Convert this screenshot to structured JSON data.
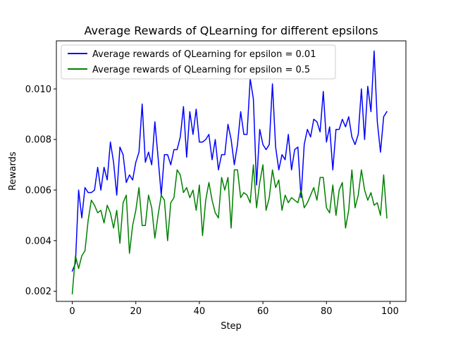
{
  "chart_data": {
    "type": "line",
    "title": "Average Rewards of QLearning for different epsilons",
    "xlabel": "Step",
    "ylabel": "Rewards",
    "xlim": [
      -5,
      105
    ],
    "ylim": [
      0.0016,
      0.0119
    ],
    "xticks": [
      0,
      20,
      40,
      60,
      80,
      100
    ],
    "xtick_labels": [
      "0",
      "20",
      "40",
      "60",
      "80",
      "100"
    ],
    "yticks": [
      0.002,
      0.004,
      0.006,
      0.008,
      0.01
    ],
    "ytick_labels": [
      "0.002",
      "0.004",
      "0.006",
      "0.008",
      "0.010"
    ],
    "grid": false,
    "legend_position": "top-left",
    "series": [
      {
        "name": "Average rewards of QLearning for epsilon = 0.01",
        "color": "#0000ff",
        "values": [
          0.0028,
          0.0031,
          0.006,
          0.0049,
          0.0061,
          0.0059,
          0.0059,
          0.006,
          0.0069,
          0.006,
          0.0069,
          0.0064,
          0.0079,
          0.0071,
          0.0058,
          0.0077,
          0.0074,
          0.0063,
          0.0066,
          0.0064,
          0.0071,
          0.0075,
          0.0094,
          0.0071,
          0.0075,
          0.007,
          0.0087,
          0.0073,
          0.0058,
          0.0074,
          0.0074,
          0.007,
          0.0076,
          0.0076,
          0.0081,
          0.0093,
          0.0073,
          0.0091,
          0.0082,
          0.0092,
          0.0079,
          0.0079,
          0.008,
          0.0082,
          0.0072,
          0.008,
          0.0068,
          0.0074,
          0.0074,
          0.0086,
          0.008,
          0.007,
          0.0078,
          0.0091,
          0.0082,
          0.0082,
          0.0104,
          0.0096,
          0.0062,
          0.0084,
          0.0078,
          0.0076,
          0.0078,
          0.0102,
          0.0077,
          0.0068,
          0.0074,
          0.0072,
          0.0082,
          0.0068,
          0.0076,
          0.0077,
          0.0057,
          0.0078,
          0.0084,
          0.0081,
          0.0088,
          0.0087,
          0.0083,
          0.0099,
          0.0079,
          0.0085,
          0.0068,
          0.0084,
          0.0084,
          0.0088,
          0.0085,
          0.0089,
          0.0081,
          0.0078,
          0.0082,
          0.01,
          0.008,
          0.0101,
          0.0091,
          0.0115,
          0.0087,
          0.0075,
          0.0089,
          0.0091
        ]
      },
      {
        "name": "Average rewards of QLearning for epsilon = 0.5",
        "color": "#008000",
        "values": [
          0.0019,
          0.0034,
          0.0029,
          0.0034,
          0.0036,
          0.0048,
          0.0056,
          0.0054,
          0.0051,
          0.0052,
          0.0047,
          0.0054,
          0.0051,
          0.0045,
          0.0052,
          0.0039,
          0.0055,
          0.0058,
          0.0035,
          0.0046,
          0.0052,
          0.0061,
          0.0046,
          0.0046,
          0.0058,
          0.0053,
          0.0041,
          0.005,
          0.0058,
          0.0056,
          0.004,
          0.0055,
          0.0057,
          0.0068,
          0.0066,
          0.0059,
          0.0061,
          0.0057,
          0.006,
          0.0052,
          0.0062,
          0.0042,
          0.0056,
          0.0063,
          0.0056,
          0.0051,
          0.0049,
          0.0065,
          0.006,
          0.0065,
          0.0045,
          0.0068,
          0.0068,
          0.0057,
          0.0059,
          0.0058,
          0.0055,
          0.007,
          0.0053,
          0.0063,
          0.007,
          0.0052,
          0.0057,
          0.0068,
          0.0061,
          0.0064,
          0.0052,
          0.0058,
          0.0055,
          0.0057,
          0.0056,
          0.0055,
          0.006,
          0.0053,
          0.0055,
          0.0058,
          0.0061,
          0.0056,
          0.0065,
          0.0065,
          0.0053,
          0.0051,
          0.0062,
          0.005,
          0.006,
          0.0063,
          0.0045,
          0.0052,
          0.0068,
          0.0053,
          0.0058,
          0.0068,
          0.006,
          0.0056,
          0.0059,
          0.0054,
          0.0055,
          0.005,
          0.0066,
          0.0049
        ]
      }
    ]
  }
}
